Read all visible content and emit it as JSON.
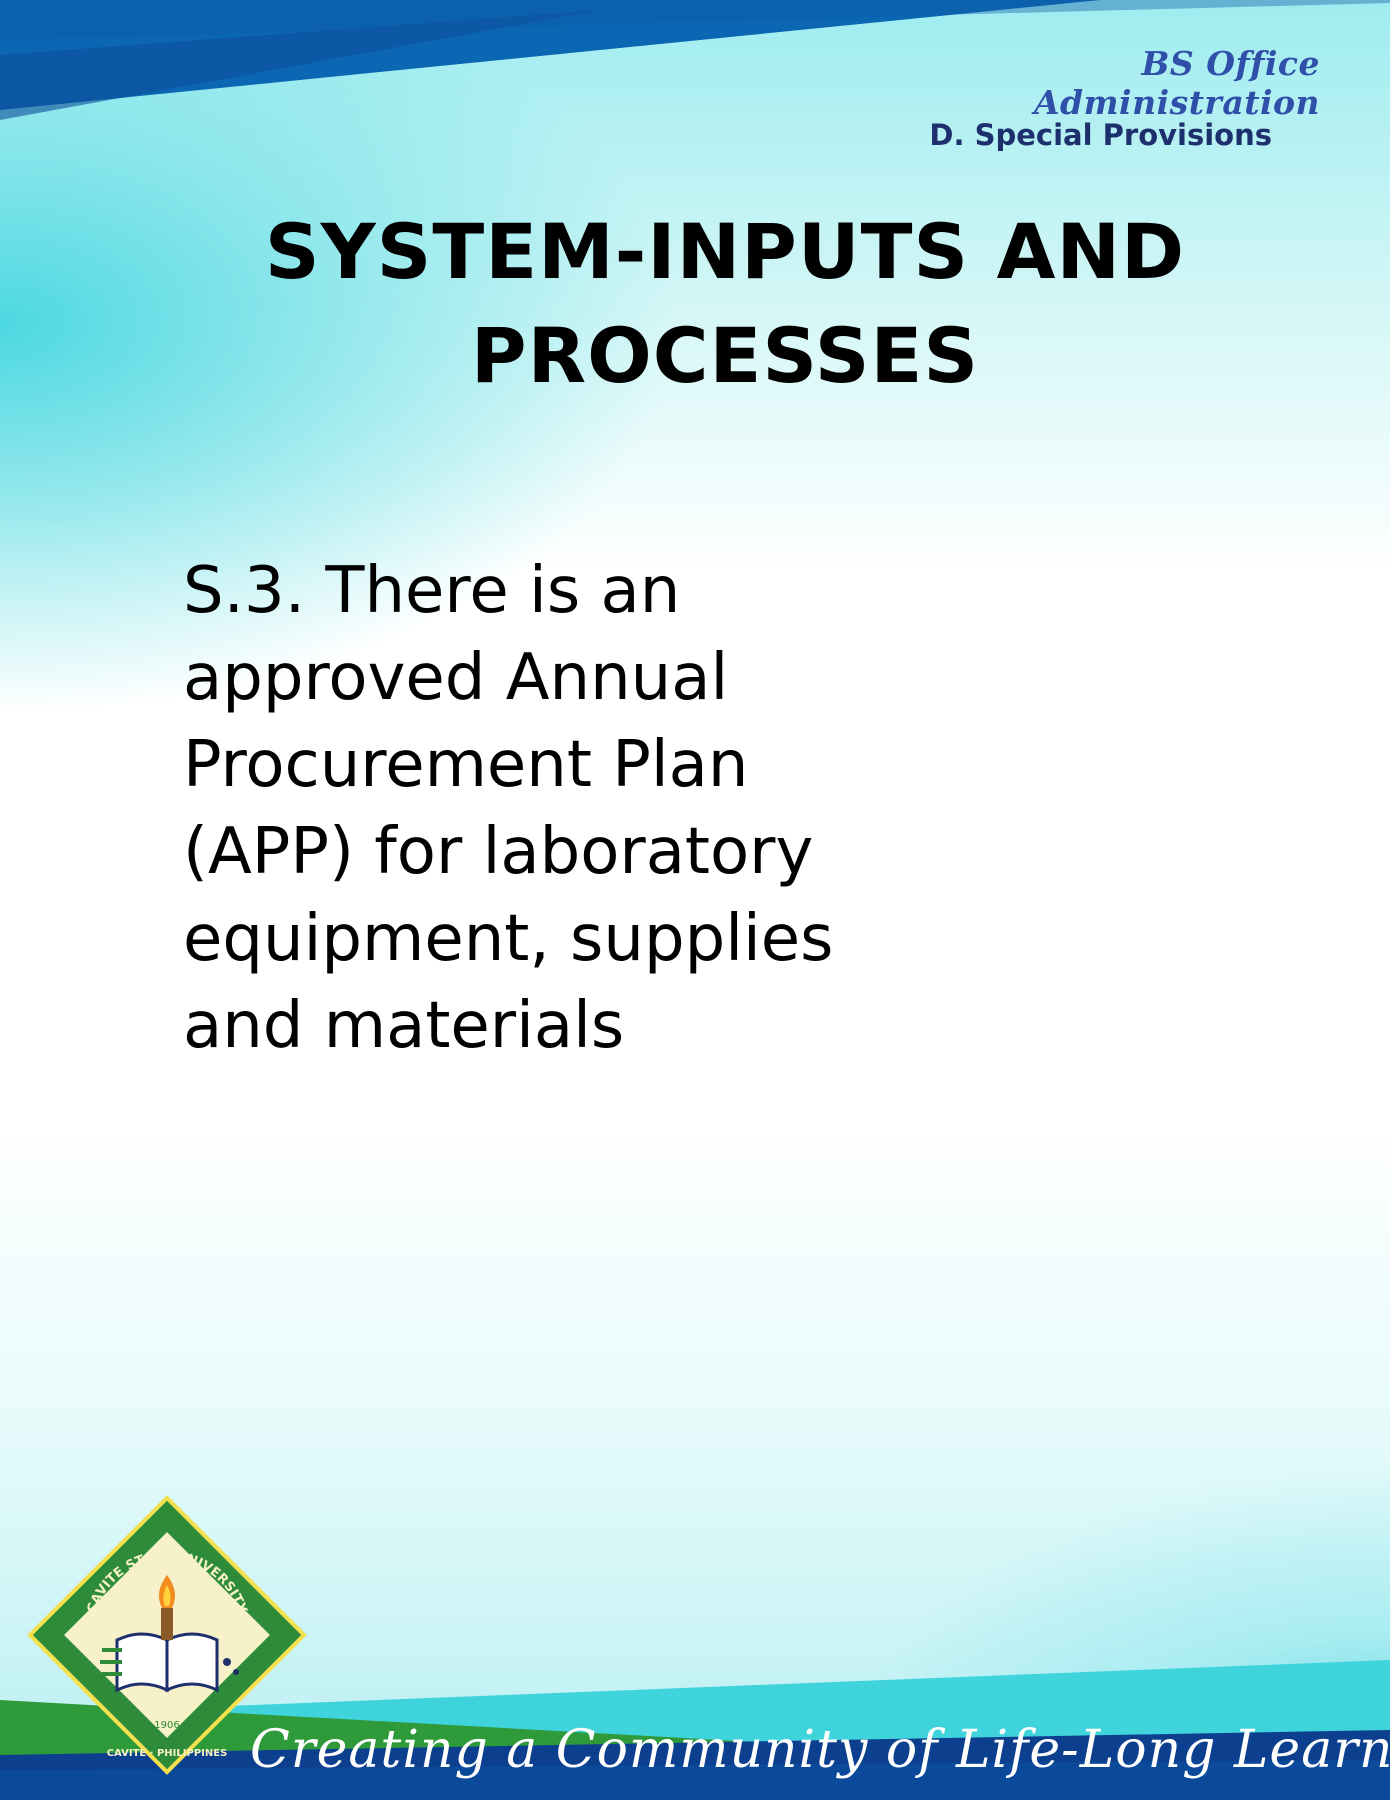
{
  "header": {
    "program": "BS Office Administration",
    "section": "D. Special Provisions"
  },
  "title": {
    "line1": "SYSTEM-INPUTS AND",
    "line2": "PROCESSES"
  },
  "body": {
    "lines": [
      "S.3. There is an",
      "approved Annual",
      "Procurement Plan",
      "(APP) for laboratory",
      "equipment, supplies",
      "and materials"
    ]
  },
  "footer": {
    "motto": "Creating a Community of Life-Long Learners",
    "seal_text_top": "CAVITE STATE UNIVERSITY",
    "seal_text_bottom": "CAVITE · PHILIPPINES",
    "seal_year": "1906"
  },
  "colors": {
    "header_blue": "#0b66b3",
    "dark_blue": "#0d3f8f",
    "cyan": "#3fd3dc",
    "green": "#2e9a3a",
    "program_text": "#2f4fa8",
    "section_text": "#1e2f6e"
  }
}
